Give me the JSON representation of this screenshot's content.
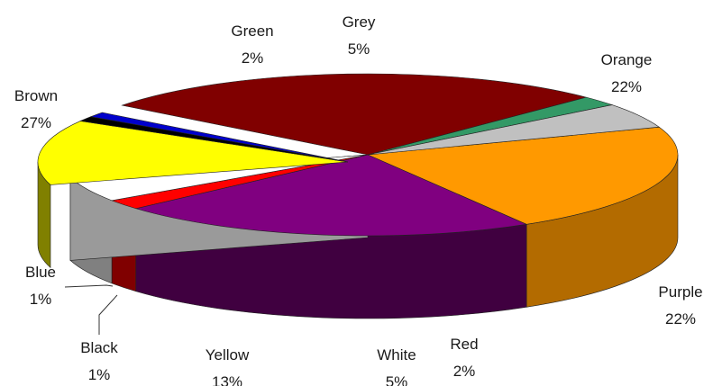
{
  "chart_data": {
    "type": "pie",
    "style": "3d-exploded",
    "slices": [
      {
        "label": "Orange",
        "value": 22,
        "pct": "22%",
        "color": "#FF9900",
        "side": "#B36B00"
      },
      {
        "label": "Purple",
        "value": 22,
        "pct": "22%",
        "color": "#800080",
        "side": "#400040"
      },
      {
        "label": "Red",
        "value": 2,
        "pct": "2%",
        "color": "#FF0000",
        "side": "#800000"
      },
      {
        "label": "White",
        "value": 5,
        "pct": "5%",
        "color": "#FFFFFF",
        "side": "#808080"
      },
      {
        "label": "Yellow",
        "value": 13,
        "pct": "13%",
        "color": "#FFFF00",
        "side": "#808000"
      },
      {
        "label": "Black",
        "value": 1,
        "pct": "1%",
        "color": "#000000",
        "side": "#000000"
      },
      {
        "label": "Blue",
        "value": 1,
        "pct": "1%",
        "color": "#0000CC",
        "side": "#000080"
      },
      {
        "label": "Brown",
        "value": 27,
        "pct": "27%",
        "color": "#800000",
        "side": "#400000"
      },
      {
        "label": "Green",
        "value": 2,
        "pct": "2%",
        "color": "#339966",
        "side": "#1A4D33"
      },
      {
        "label": "Grey",
        "value": 5,
        "pct": "5%",
        "color": "#C0C0C0",
        "side": "#808080"
      }
    ]
  }
}
